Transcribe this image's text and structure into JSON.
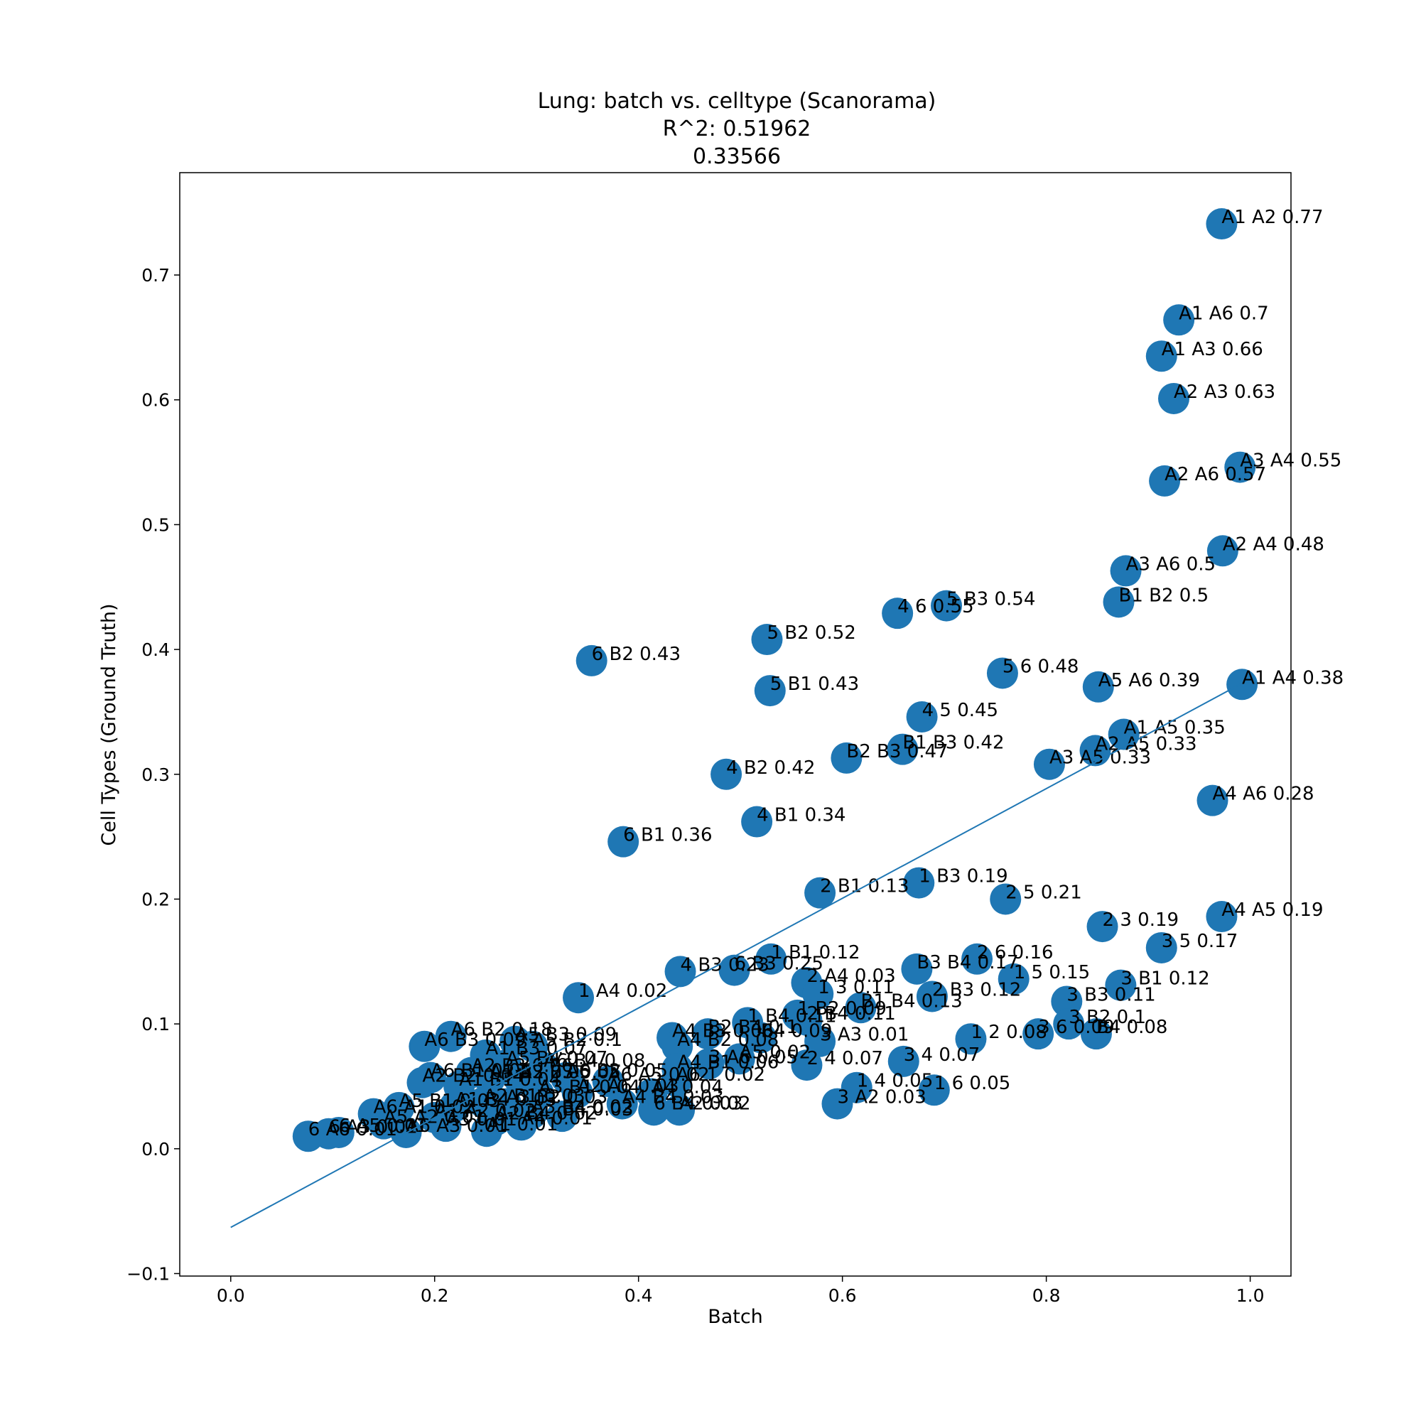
{
  "chart_data": {
    "type": "scatter",
    "title_lines": [
      "Lung: batch vs. celltype (Scanorama)",
      "R^2: 0.51962",
      "0.33566"
    ],
    "xlabel": "Batch",
    "ylabel": "Cell Types (Ground Truth)",
    "xlim": [
      -0.05,
      1.04
    ],
    "ylim": [
      -0.102,
      0.782
    ],
    "xticks": [
      0.0,
      0.2,
      0.4,
      0.6,
      0.8,
      1.0
    ],
    "xtick_labels": [
      "0.0",
      "0.2",
      "0.4",
      "0.6",
      "0.8",
      "1.0"
    ],
    "yticks": [
      -0.1,
      0.0,
      0.1,
      0.2,
      0.3,
      0.4,
      0.5,
      0.6,
      0.7
    ],
    "ytick_labels": [
      "−0.1",
      "0.0",
      "0.1",
      "0.2",
      "0.3",
      "0.4",
      "0.5",
      "0.6",
      "0.7"
    ],
    "grid": false,
    "marker_color": "#1f77b4",
    "line_color": "#1f77b4",
    "fit_line": {
      "x": [
        0.0,
        0.99
      ],
      "y": [
        -0.063,
        0.372
      ]
    },
    "points": [
      {
        "x": 0.972,
        "y": 0.741,
        "label": "A1 A2 0.77"
      },
      {
        "x": 0.93,
        "y": 0.664,
        "label": "A1 A6 0.7"
      },
      {
        "x": 0.913,
        "y": 0.635,
        "label": "A1 A3 0.66"
      },
      {
        "x": 0.925,
        "y": 0.601,
        "label": "A2 A3 0.63"
      },
      {
        "x": 0.99,
        "y": 0.546,
        "label": "A3 A4 0.55"
      },
      {
        "x": 0.916,
        "y": 0.535,
        "label": "A2 A6 0.57"
      },
      {
        "x": 0.973,
        "y": 0.479,
        "label": "A2 A4 0.48"
      },
      {
        "x": 0.878,
        "y": 0.463,
        "label": "A3 A6 0.5"
      },
      {
        "x": 0.871,
        "y": 0.438,
        "label": "B1 B2 0.5"
      },
      {
        "x": 0.702,
        "y": 0.435,
        "label": "5 B3 0.54"
      },
      {
        "x": 0.654,
        "y": 0.429,
        "label": "4 6 0.55"
      },
      {
        "x": 0.526,
        "y": 0.408,
        "label": "5 B2 0.52"
      },
      {
        "x": 0.354,
        "y": 0.391,
        "label": "6 B2 0.43"
      },
      {
        "x": 0.757,
        "y": 0.381,
        "label": "5 6 0.48"
      },
      {
        "x": 0.851,
        "y": 0.37,
        "label": "A5 A6 0.39"
      },
      {
        "x": 0.992,
        "y": 0.372,
        "label": "A1 A4 0.38"
      },
      {
        "x": 0.529,
        "y": 0.367,
        "label": "5 B1 0.43"
      },
      {
        "x": 0.678,
        "y": 0.346,
        "label": "4 5 0.45"
      },
      {
        "x": 0.876,
        "y": 0.332,
        "label": "A1 A5 0.35"
      },
      {
        "x": 0.659,
        "y": 0.32,
        "label": "B1 B3 0.42"
      },
      {
        "x": 0.848,
        "y": 0.319,
        "label": "A2 A5 0.33"
      },
      {
        "x": 0.604,
        "y": 0.313,
        "label": "B2 B3 0.47"
      },
      {
        "x": 0.803,
        "y": 0.308,
        "label": "A3 A5 0.33"
      },
      {
        "x": 0.486,
        "y": 0.3,
        "label": "4 B2 0.42"
      },
      {
        "x": 0.963,
        "y": 0.279,
        "label": "A4 A6 0.28"
      },
      {
        "x": 0.516,
        "y": 0.262,
        "label": "4 B1 0.34"
      },
      {
        "x": 0.385,
        "y": 0.246,
        "label": "6 B1 0.36"
      },
      {
        "x": 0.675,
        "y": 0.213,
        "label": "1 B3 0.19"
      },
      {
        "x": 0.578,
        "y": 0.205,
        "label": "2 B1 0.13"
      },
      {
        "x": 0.76,
        "y": 0.2,
        "label": "2 5 0.21"
      },
      {
        "x": 0.972,
        "y": 0.186,
        "label": "A4 A5 0.19"
      },
      {
        "x": 0.855,
        "y": 0.178,
        "label": "2 3 0.19"
      },
      {
        "x": 0.913,
        "y": 0.161,
        "label": "3 5 0.17"
      },
      {
        "x": 0.732,
        "y": 0.152,
        "label": "2 6 0.16"
      },
      {
        "x": 0.53,
        "y": 0.152,
        "label": "1 B1 0.12"
      },
      {
        "x": 0.673,
        "y": 0.144,
        "label": "B3 B4 0.17"
      },
      {
        "x": 0.441,
        "y": 0.142,
        "label": "4 B3 0.23"
      },
      {
        "x": 0.494,
        "y": 0.143,
        "label": "6 B3 0.25"
      },
      {
        "x": 0.565,
        "y": 0.133,
        "label": "2 A4 0.03"
      },
      {
        "x": 0.768,
        "y": 0.136,
        "label": "1 5 0.15"
      },
      {
        "x": 0.873,
        "y": 0.131,
        "label": "3 B1 0.12"
      },
      {
        "x": 0.341,
        "y": 0.121,
        "label": "1 A4 0.02"
      },
      {
        "x": 0.688,
        "y": 0.122,
        "label": "2 B3 0.12"
      },
      {
        "x": 0.576,
        "y": 0.124,
        "label": "1 3 0.11"
      },
      {
        "x": 0.82,
        "y": 0.118,
        "label": "3 B3 0.11"
      },
      {
        "x": 0.618,
        "y": 0.113,
        "label": "B1 B4 0.13"
      },
      {
        "x": 0.556,
        "y": 0.107,
        "label": "1 B2 0.09"
      },
      {
        "x": 0.565,
        "y": 0.103,
        "label": "2 B4 0.11"
      },
      {
        "x": 0.507,
        "y": 0.101,
        "label": "1 B4 0.11"
      },
      {
        "x": 0.822,
        "y": 0.1,
        "label": "3 B2 0.1"
      },
      {
        "x": 0.849,
        "y": 0.092,
        "label": "B4 0.08"
      },
      {
        "x": 0.792,
        "y": 0.092,
        "label": "3 6 0.09"
      },
      {
        "x": 0.726,
        "y": 0.088,
        "label": "1 2 0.08"
      },
      {
        "x": 0.216,
        "y": 0.09,
        "label": "A6 B2 0.18"
      },
      {
        "x": 0.433,
        "y": 0.089,
        "label": "A4 B3 0.06"
      },
      {
        "x": 0.468,
        "y": 0.092,
        "label": "B2 B4 0.1"
      },
      {
        "x": 0.52,
        "y": 0.089,
        "label": "B4 0.09"
      },
      {
        "x": 0.578,
        "y": 0.086,
        "label": "3 A3 0.01"
      },
      {
        "x": 0.19,
        "y": 0.082,
        "label": "A6 B3 0.09"
      },
      {
        "x": 0.279,
        "y": 0.086,
        "label": "A5 B3 0.09"
      },
      {
        "x": 0.296,
        "y": 0.082,
        "label": "A5 B2 0.1"
      },
      {
        "x": 0.438,
        "y": 0.082,
        "label": "A4 B2 0.08"
      },
      {
        "x": 0.25,
        "y": 0.075,
        "label": "A1 B3 0.07"
      },
      {
        "x": 0.499,
        "y": 0.072,
        "label": "A5 0.02"
      },
      {
        "x": 0.469,
        "y": 0.068,
        "label": "3 A6 0.05"
      },
      {
        "x": 0.66,
        "y": 0.07,
        "label": "3 4 0.07"
      },
      {
        "x": 0.565,
        "y": 0.067,
        "label": "2 4 0.07"
      },
      {
        "x": 0.27,
        "y": 0.067,
        "label": "A5 B4 0.07"
      },
      {
        "x": 0.307,
        "y": 0.065,
        "label": "A6 B4 0.08"
      },
      {
        "x": 0.236,
        "y": 0.061,
        "label": "A2 B3 0.06"
      },
      {
        "x": 0.438,
        "y": 0.064,
        "label": "A4 B1 0.06"
      },
      {
        "x": 0.196,
        "y": 0.057,
        "label": "A6 B1 0.05"
      },
      {
        "x": 0.254,
        "y": 0.056,
        "label": "A1 B2 0.05"
      },
      {
        "x": 0.283,
        "y": 0.056,
        "label": "A3 B3 0.05"
      },
      {
        "x": 0.329,
        "y": 0.057,
        "label": "A6 B2 0.05"
      },
      {
        "x": 0.37,
        "y": 0.054,
        "label": "A6 A5 0.02"
      },
      {
        "x": 0.437,
        "y": 0.054,
        "label": "A6 1 0.02"
      },
      {
        "x": 0.188,
        "y": 0.053,
        "label": "A2 B2 0.04"
      },
      {
        "x": 0.224,
        "y": 0.05,
        "label": "A1 B1 0.04"
      },
      {
        "x": 0.614,
        "y": 0.049,
        "label": "1 4 0.05"
      },
      {
        "x": 0.69,
        "y": 0.047,
        "label": "1 6 0.05"
      },
      {
        "x": 0.302,
        "y": 0.044,
        "label": "A3 B1 0.04"
      },
      {
        "x": 0.34,
        "y": 0.045,
        "label": "A2 A6 0.03"
      },
      {
        "x": 0.413,
        "y": 0.044,
        "label": "A4 0.04"
      },
      {
        "x": 0.595,
        "y": 0.036,
        "label": "3 A2 0.03"
      },
      {
        "x": 0.384,
        "y": 0.036,
        "label": "A4 B4 0.03"
      },
      {
        "x": 0.248,
        "y": 0.037,
        "label": "A2 B1 0.03"
      },
      {
        "x": 0.27,
        "y": 0.036,
        "label": "A3 B2 0.03"
      },
      {
        "x": 0.22,
        "y": 0.034,
        "label": "A1 B4 0.03"
      },
      {
        "x": 0.165,
        "y": 0.033,
        "label": "A5 B1 0.03"
      },
      {
        "x": 0.14,
        "y": 0.028,
        "label": "A6 A1 0.02"
      },
      {
        "x": 0.415,
        "y": 0.031,
        "label": "6 B4 0.03"
      },
      {
        "x": 0.44,
        "y": 0.031,
        "label": "A2 0.02"
      },
      {
        "x": 0.295,
        "y": 0.028,
        "label": "A3 B4 0.02"
      },
      {
        "x": 0.325,
        "y": 0.026,
        "label": "B4 0.03"
      },
      {
        "x": 0.2,
        "y": 0.025,
        "label": "A1 A2 0.02"
      },
      {
        "x": 0.26,
        "y": 0.023,
        "label": "A2 B4 0.02"
      },
      {
        "x": 0.15,
        "y": 0.02,
        "label": "A5 A2 0.01"
      },
      {
        "x": 0.211,
        "y": 0.018,
        "label": "A3 0.01"
      },
      {
        "x": 0.285,
        "y": 0.019,
        "label": "A4 0.01"
      },
      {
        "x": 0.172,
        "y": 0.013,
        "label": "A6 A3 0.01"
      },
      {
        "x": 0.251,
        "y": 0.014,
        "label": "A1 0.01"
      },
      {
        "x": 0.106,
        "y": 0.013,
        "label": "6 A5 0.01"
      },
      {
        "x": 0.096,
        "y": 0.012,
        "label": "6 A3 0.01"
      },
      {
        "x": 0.076,
        "y": 0.01,
        "label": "6 A6 0.01"
      }
    ]
  }
}
